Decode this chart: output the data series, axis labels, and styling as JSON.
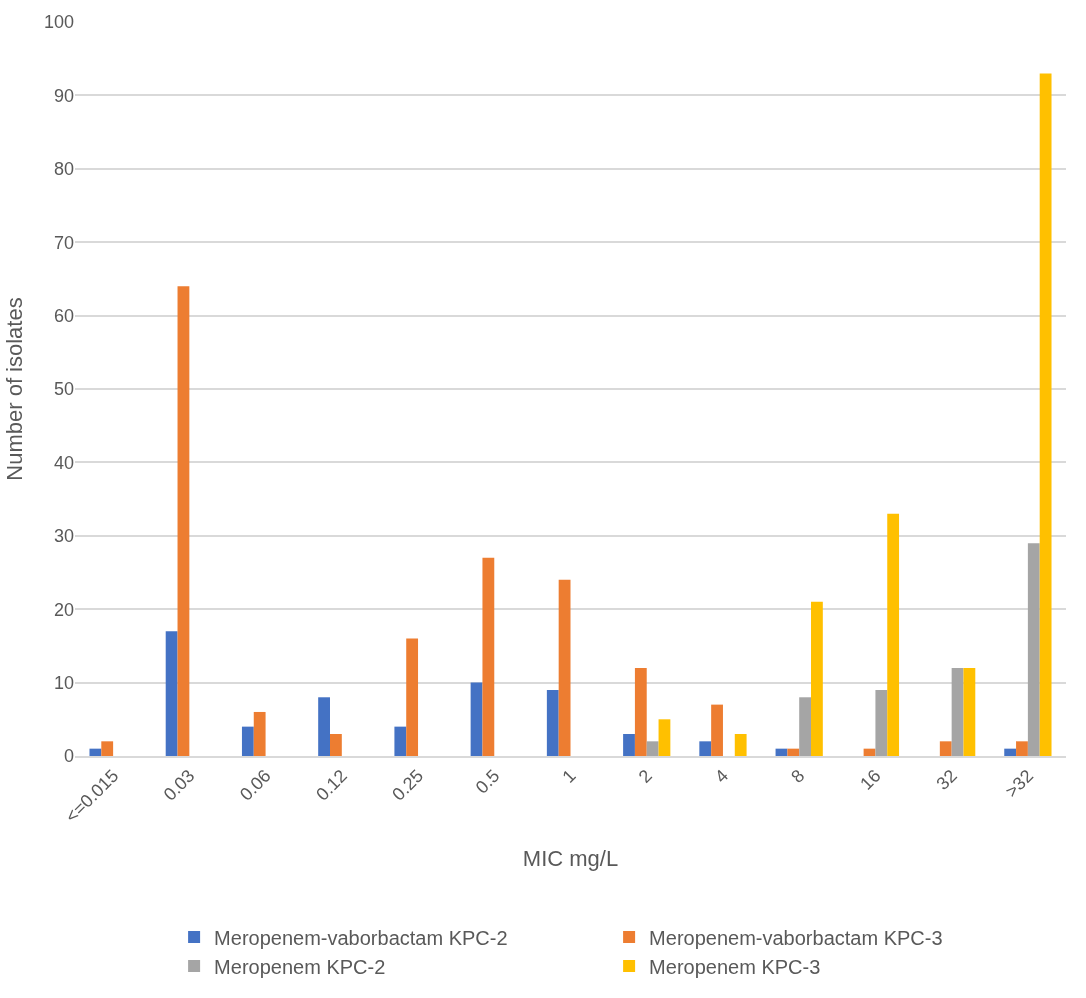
{
  "chart_data": {
    "type": "bar",
    "xlabel": "MIC mg/L",
    "ylabel": "Number of isolates",
    "categories": [
      "<=0.015",
      "0.03",
      "0.06",
      "0.12",
      "0.25",
      "0.5",
      "1",
      "2",
      "4",
      "8",
      "16",
      "32",
      ">32"
    ],
    "series": [
      {
        "name": "Meropenem-vaborbactam KPC-2",
        "color": "#4472c4",
        "values": [
          1,
          17,
          4,
          8,
          4,
          10,
          9,
          3,
          2,
          1,
          null,
          null,
          1
        ]
      },
      {
        "name": "Meropenem-vaborbactam KPC-3",
        "color": "#ed7d31",
        "values": [
          2,
          64,
          6,
          3,
          16,
          27,
          24,
          12,
          7,
          1,
          1,
          2,
          2
        ]
      },
      {
        "name": "Meropenem KPC-2",
        "color": "#a5a5a5",
        "values": [
          null,
          null,
          null,
          null,
          null,
          null,
          null,
          2,
          null,
          8,
          9,
          12,
          29
        ]
      },
      {
        "name": "Meropenem KPC-3",
        "color": "#ffc000",
        "values": [
          null,
          null,
          null,
          null,
          null,
          null,
          null,
          5,
          3,
          21,
          33,
          12,
          93
        ]
      }
    ],
    "ylim": [
      0,
      100
    ],
    "yticks": [
      0,
      10,
      20,
      30,
      40,
      50,
      60,
      70,
      80,
      90,
      100
    ],
    "grid": "y",
    "legend": "bottom"
  }
}
